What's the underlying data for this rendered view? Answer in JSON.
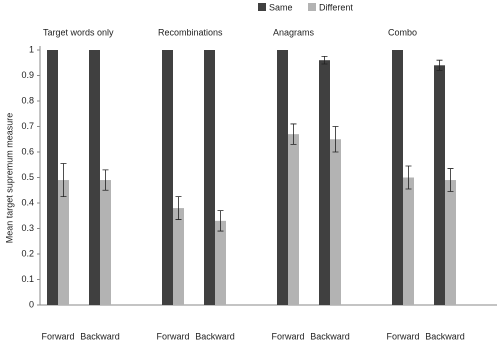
{
  "chart_data": {
    "type": "bar",
    "y_label": "Mean target supremum measure",
    "groups": [
      "Target words only",
      "Recombinations",
      "Anagrams",
      "Combo"
    ],
    "categories": [
      "Forward",
      "Backward",
      "Forward",
      "Backward",
      "Forward",
      "Backward",
      "Forward",
      "Backward"
    ],
    "series": [
      {
        "name": "Same",
        "color": "#404040",
        "values": [
          1,
          1,
          1,
          1,
          1,
          0.96,
          1,
          0.94
        ],
        "errors": [
          null,
          null,
          null,
          null,
          null,
          0.015,
          null,
          0.02
        ]
      },
      {
        "name": "Different",
        "color": "#b3b3b3",
        "values": [
          0.49,
          0.49,
          0.38,
          0.33,
          0.67,
          0.65,
          0.5,
          0.49
        ],
        "errors": [
          0.065,
          0.04,
          0.045,
          0.04,
          0.04,
          0.05,
          0.045,
          0.045
        ]
      }
    ],
    "ylim": [
      0,
      1
    ],
    "yticks": [
      0,
      0.1,
      0.2,
      0.3,
      0.4,
      0.5,
      0.6,
      0.7,
      0.8,
      0.9,
      1
    ],
    "grid": false,
    "legend": "top"
  }
}
